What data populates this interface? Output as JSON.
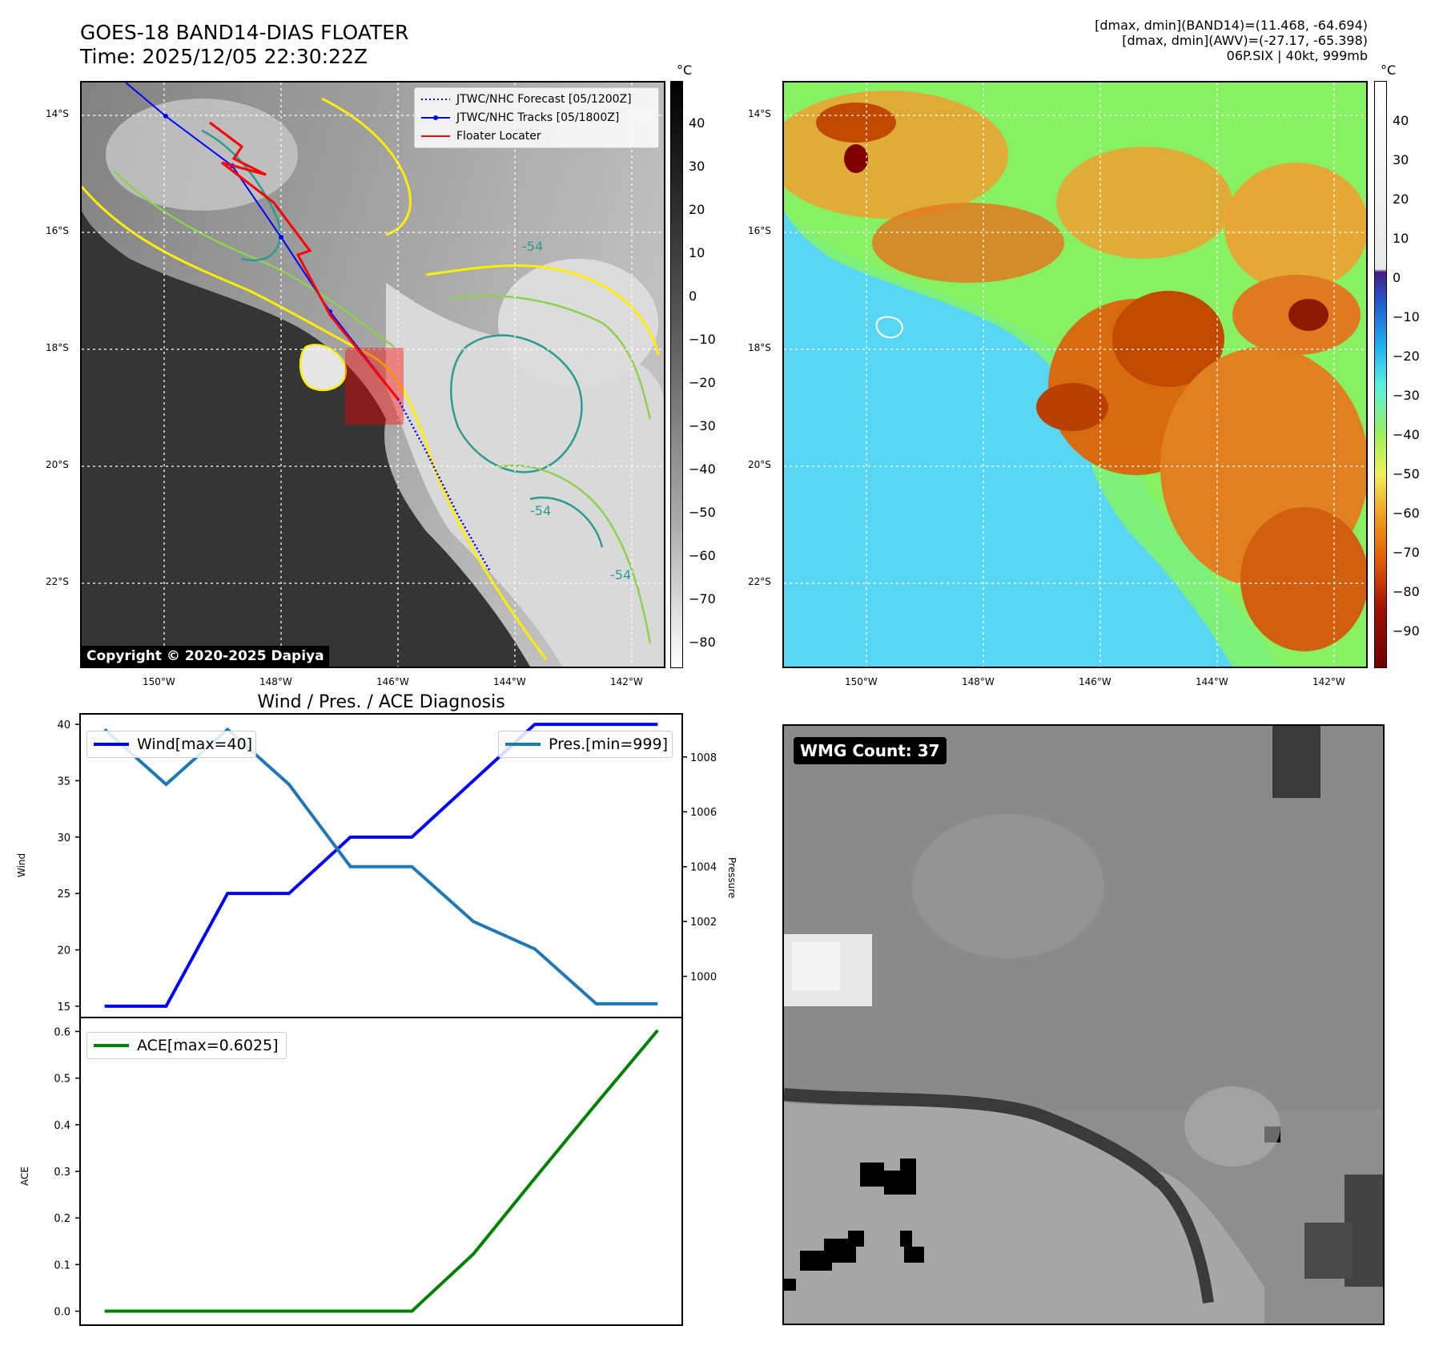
{
  "header": {
    "title_line1": "GOES-18 BAND14-DIAS FLOATER",
    "title_line2": "Time: 2025/12/05 22:30:22Z",
    "info_line1": "[dmax, dmin](BAND14)=(11.468, -64.694)",
    "info_line2": "[dmax, dmin](AWV)=(-27.17, -65.398)",
    "info_line3": "06P.SIX | 40kt, 999mb"
  },
  "map": {
    "lat_labels": [
      "14°S",
      "16°S",
      "18°S",
      "20°S",
      "22°S"
    ],
    "lon_labels": [
      "150°W",
      "148°W",
      "146°W",
      "144°W",
      "142°W"
    ],
    "legend": [
      "JTWC/NHC Forecast [05/1200Z]",
      "JTWC/NHC Tracks [05/1800Z]",
      "Floater Locater"
    ],
    "copyright": "Copyright © 2020-2025 Dapiya",
    "contour_label": "-54",
    "colorbar_unit": "°C",
    "colorbar_ticks_left": [
      "40",
      "30",
      "20",
      "10",
      "0",
      "−10",
      "−20",
      "−30",
      "−40",
      "−50",
      "−60",
      "−70",
      "−80"
    ],
    "colorbar_ticks_right": [
      "40",
      "30",
      "20",
      "10",
      "0",
      "−10",
      "−20",
      "−30",
      "−40",
      "−50",
      "−60",
      "−70",
      "−80",
      "−90"
    ],
    "colors": {
      "track": "#0000ff",
      "floater": "#ff0000",
      "contour_yellow": "#ffee00",
      "contour_green": "#8fd14f",
      "contour_teal": "#2a9d8f"
    }
  },
  "wmg": {
    "label": "WMG Count: 37"
  },
  "chart_data": [
    {
      "type": "line",
      "title": "Wind / Pres. / ACE Diagnosis",
      "x": [
        0,
        1,
        2,
        3,
        4,
        5,
        6,
        7,
        8,
        9
      ],
      "series": [
        {
          "name": "Wind[max=40]",
          "axis": "left",
          "color": "#0000ff",
          "values": [
            15,
            15,
            25,
            25,
            30,
            30,
            35,
            40,
            40,
            40
          ]
        },
        {
          "name": "Pres.[min=999]",
          "axis": "right",
          "color": "#1f77b4",
          "values": [
            1009,
            1007,
            1009,
            1007,
            1004,
            1004,
            1002,
            1001,
            999,
            999
          ]
        }
      ],
      "ylabel": "Wind",
      "ylim": [
        14,
        41
      ],
      "yticks": [
        "15",
        "20",
        "25",
        "30",
        "35",
        "40"
      ],
      "ylabel_right": "Pressure",
      "ylim_right": [
        998.5,
        1009.6
      ],
      "yticks_right": [
        "1000",
        "1002",
        "1004",
        "1006",
        "1008"
      ]
    },
    {
      "type": "line",
      "x": [
        0,
        1,
        2,
        3,
        4,
        5,
        6,
        7,
        8,
        9
      ],
      "series": [
        {
          "name": "ACE[max=0.6025]",
          "color": "#008000",
          "values": [
            0,
            0,
            0,
            0,
            0,
            0,
            0.1225,
            0.285,
            0.445,
            0.6025
          ]
        }
      ],
      "ylabel": "ACE",
      "ylim": [
        -0.03,
        0.63
      ],
      "yticks": [
        "0.0",
        "0.1",
        "0.2",
        "0.3",
        "0.4",
        "0.5",
        "0.6"
      ]
    }
  ]
}
